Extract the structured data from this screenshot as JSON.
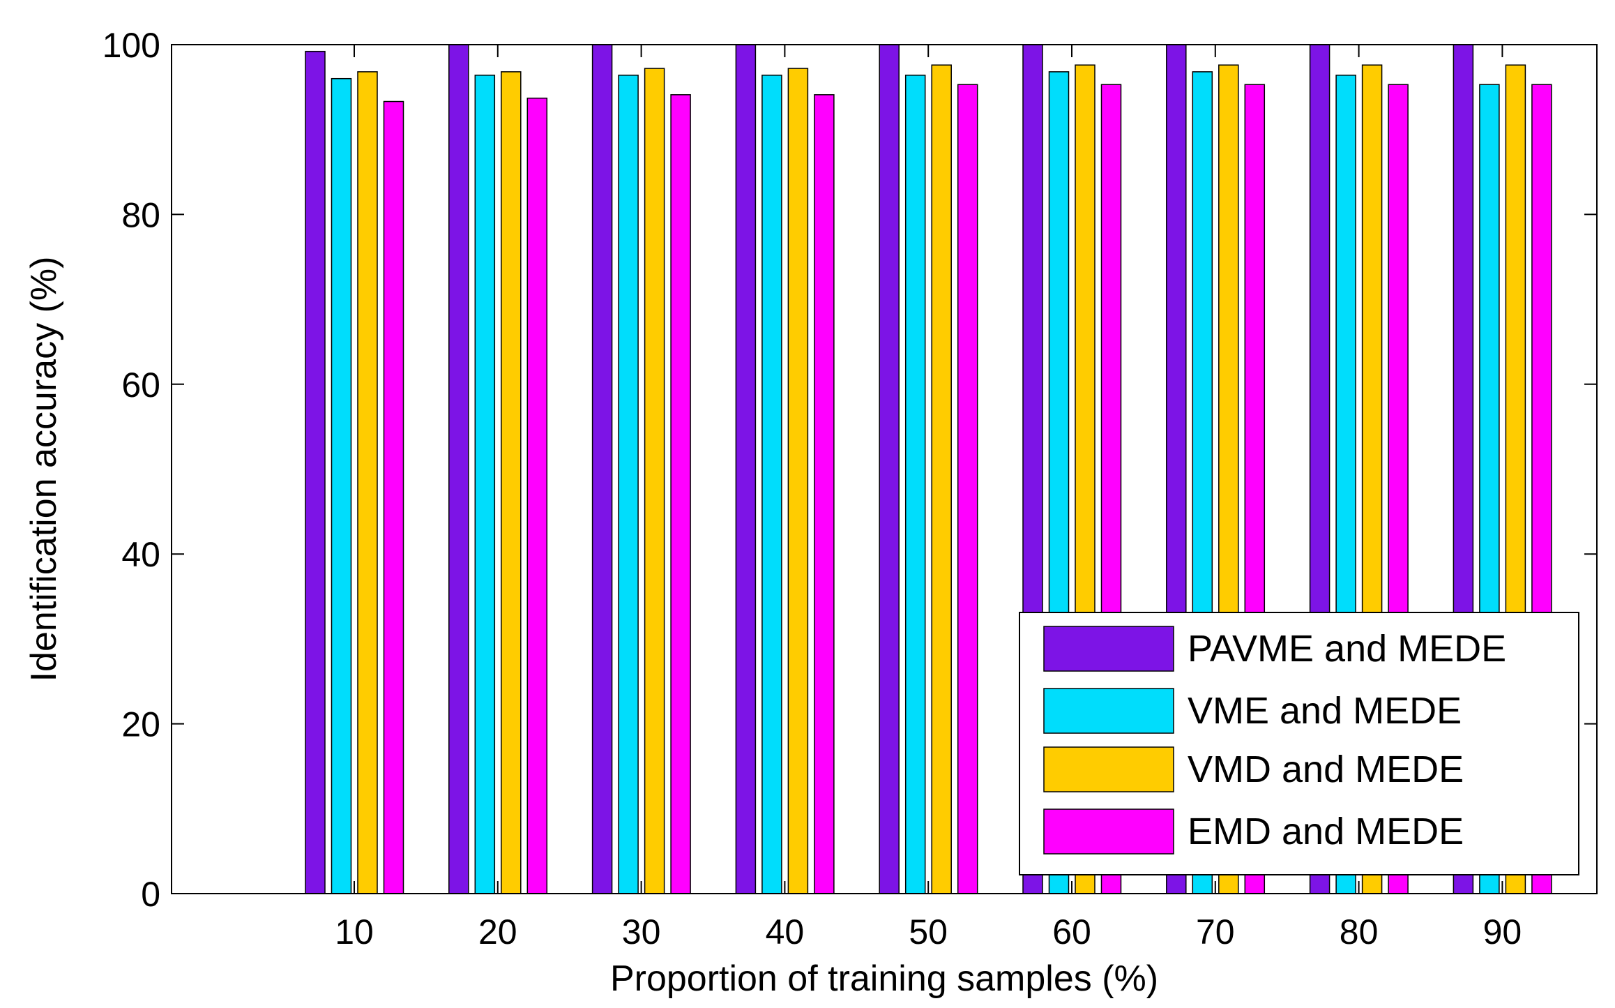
{
  "chart_data": {
    "type": "bar",
    "title": "",
    "xlabel": "Proportion of training samples (%)",
    "ylabel": "Identification accuracy (%)",
    "categories": [
      "10",
      "20",
      "30",
      "40",
      "50",
      "60",
      "70",
      "80",
      "90"
    ],
    "ylim": [
      0,
      100
    ],
    "yticks": [
      "0",
      "20",
      "40",
      "60",
      "80",
      "100"
    ],
    "grid": false,
    "legend_position": "bottom-right",
    "series": [
      {
        "name": "PAVME and MEDE",
        "color": "#7d14e6",
        "values": [
          99.2,
          100,
          100,
          100,
          100,
          100,
          100,
          100,
          100
        ]
      },
      {
        "name": "VME and MEDE",
        "color": "#00ddfc",
        "values": [
          96.0,
          96.4,
          96.4,
          96.4,
          96.4,
          96.8,
          96.8,
          96.4,
          95.3
        ]
      },
      {
        "name": "VMD and MEDE",
        "color": "#ffcc00",
        "values": [
          96.8,
          96.8,
          97.2,
          97.2,
          97.6,
          97.6,
          97.6,
          97.6,
          97.6
        ]
      },
      {
        "name": "EMD and MEDE",
        "color": "#ff00ff",
        "values": [
          93.3,
          93.7,
          94.1,
          94.1,
          95.3,
          95.3,
          95.3,
          95.3,
          95.3
        ]
      }
    ]
  }
}
